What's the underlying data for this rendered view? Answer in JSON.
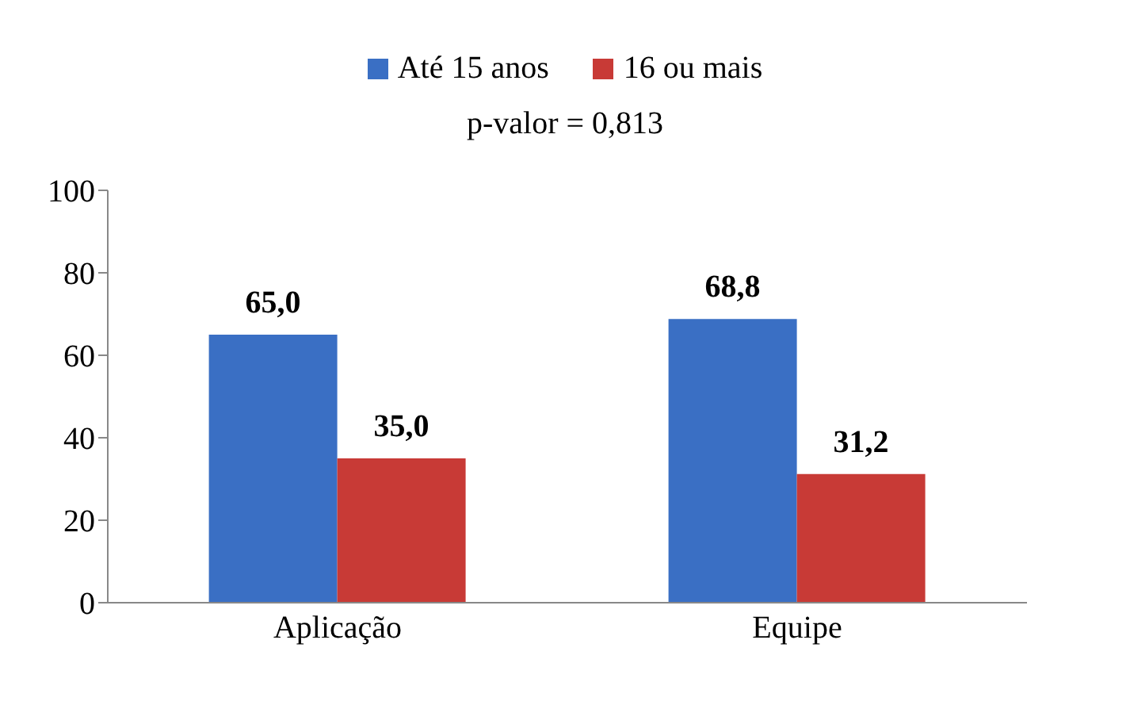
{
  "chart_data": {
    "type": "bar",
    "categories": [
      "Aplicação",
      "Equipe"
    ],
    "series": [
      {
        "name": "Até 15 anos",
        "color": "#3a6fc4",
        "values": [
          65.0,
          68.8
        ],
        "value_labels": [
          "65,0",
          "68,8"
        ]
      },
      {
        "name": "16 ou mais",
        "color": "#c83a36",
        "values": [
          35.0,
          31.2
        ],
        "value_labels": [
          "35,0",
          "31,2"
        ]
      }
    ],
    "annotations": [
      "p-valor = 0,813"
    ],
    "ylim": [
      0,
      100
    ],
    "yticks": [
      0,
      20,
      40,
      60,
      80,
      100
    ],
    "grid": false,
    "legend": "top"
  }
}
